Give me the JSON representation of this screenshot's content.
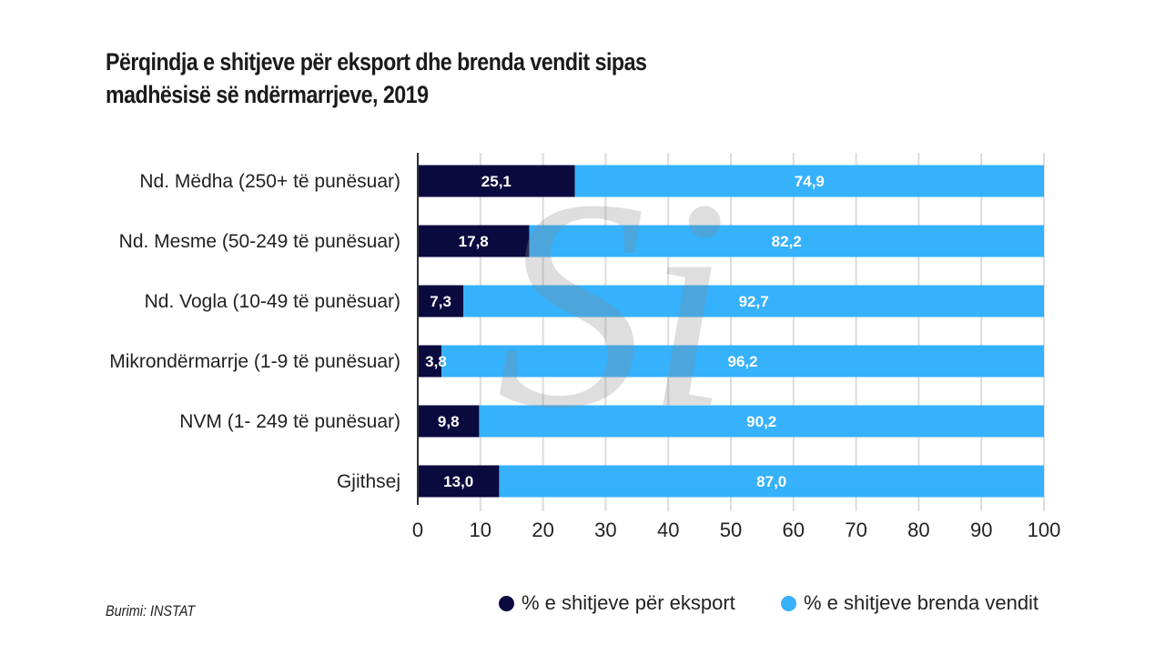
{
  "title_lines": [
    "Përqindja e shitjeve për eksport dhe brenda vendit sipas",
    "madhësisë së ndërmarrjeve, 2019"
  ],
  "source": "Burimi: INSTAT",
  "watermark": "Si",
  "colors": {
    "export": "#0b0a3f",
    "domestic": "#36b1fb",
    "grid": "#dcdcdc",
    "axis": "#333333"
  },
  "chart_data": {
    "type": "bar",
    "orientation": "horizontal",
    "stacked": true,
    "title": "Përqindja e shitjeve për eksport dhe brenda vendit sipas madhësisë së ndërmarrjeve, 2019",
    "xlabel": "",
    "ylabel": "",
    "xlim": [
      0,
      100
    ],
    "xticks": [
      "0",
      "10",
      "20",
      "30",
      "40",
      "50",
      "60",
      "70",
      "80",
      "90",
      "100"
    ],
    "grid": true,
    "legend_position": "bottom-right",
    "categories": [
      "Nd. Mëdha (250+ të punësuar)",
      "Nd. Mesme (50-249 të punësuar)",
      "Nd. Vogla (10-49 të punësuar)",
      "Mikrondërmarrje (1-9 të punësuar)",
      "NVM  (1- 249 të punësuar)",
      "Gjithsej"
    ],
    "series": [
      {
        "name": "% e shitjeve për eksport",
        "values": [
          25.1,
          17.8,
          7.3,
          3.8,
          9.8,
          13.0
        ],
        "labels": [
          "25,1",
          "17,8",
          "7,3",
          "3,8",
          "9,8",
          "13,0"
        ]
      },
      {
        "name": "% e shitjeve brenda vendit",
        "values": [
          74.9,
          82.2,
          92.7,
          96.2,
          90.2,
          87.0
        ],
        "labels": [
          "74,9",
          "82,2",
          "92,7",
          "96,2",
          "90,2",
          "87,0"
        ]
      }
    ]
  }
}
